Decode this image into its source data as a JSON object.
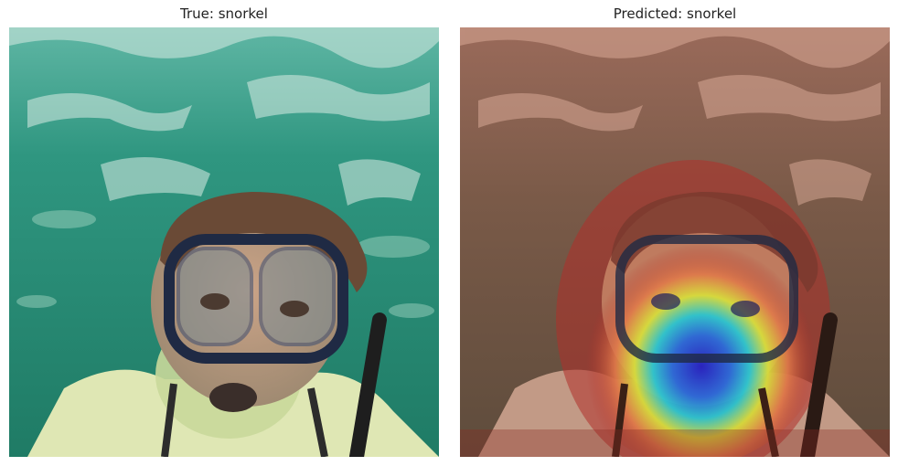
{
  "figure": {
    "left_panel": {
      "title": "True: snorkel",
      "image": "underwater photo of a snorkeler wearing a dive mask and snorkel"
    },
    "right_panel": {
      "title": "Predicted: snorkel",
      "image": "same photo with Grad-CAM heatmap overlay (jet colormap)"
    }
  },
  "colors": {
    "water_dark": "#1d6b5c",
    "water_light": "#3fa690",
    "skin": "#d8a98f",
    "hair": "#6a4a36",
    "mask_frame": "#1f2a44",
    "heat_red": "#b0302a",
    "heat_yellow": "#d8e23a",
    "heat_cyan": "#22c9d6",
    "heat_blue": "#1a1ac8"
  }
}
